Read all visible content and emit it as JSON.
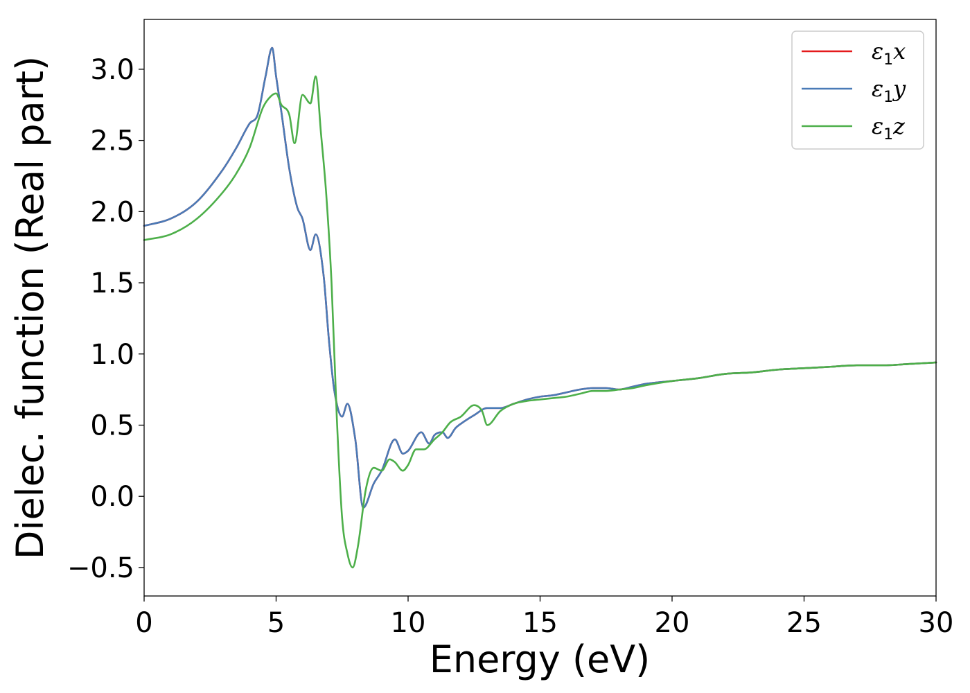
{
  "chart_data": {
    "type": "line",
    "title": "",
    "xlabel": "Energy (eV)",
    "ylabel": "Dielec. function (Real part)",
    "xlim": [
      0,
      30
    ],
    "ylim": [
      -0.7,
      3.35
    ],
    "xticks": [
      0,
      5,
      10,
      15,
      20,
      25,
      30
    ],
    "xtick_labels": [
      "0",
      "5",
      "10",
      "15",
      "20",
      "25",
      "30"
    ],
    "yticks": [
      -0.5,
      0.0,
      0.5,
      1.0,
      1.5,
      2.0,
      2.5,
      3.0
    ],
    "ytick_labels": [
      "−0.5",
      "0.0",
      "0.5",
      "1.0",
      "1.5",
      "2.0",
      "2.5",
      "3.0"
    ],
    "grid": false,
    "legend_position": "top-right",
    "series": [
      {
        "name": "ε₁x",
        "label_base": "ε",
        "label_sub": "1",
        "label_tail": "x",
        "color": "#e41a1c",
        "x": [
          0,
          1,
          2,
          3,
          3.5,
          4,
          4.3,
          4.6,
          4.85,
          5.0,
          5.2,
          5.5,
          5.8,
          6.0,
          6.3,
          6.5,
          6.8,
          7.0,
          7.2,
          7.5,
          7.7,
          8.0,
          8.3,
          8.7,
          9.0,
          9.5,
          9.8,
          10.0,
          10.5,
          10.8,
          11.0,
          11.3,
          11.5,
          11.8,
          12.0,
          12.5,
          13.0,
          13.5,
          14.0,
          14.5,
          15.0,
          15.5,
          16.0,
          16.5,
          17.0,
          17.5,
          18.0,
          18.5,
          19.0,
          20.0,
          21.0,
          22.0,
          23.0,
          24.0,
          25.0,
          26.0,
          27.0,
          28.0,
          29.0,
          30.0
        ],
        "y": [
          1.9,
          1.95,
          2.07,
          2.3,
          2.45,
          2.62,
          2.68,
          2.95,
          3.15,
          2.95,
          2.7,
          2.3,
          2.03,
          1.95,
          1.73,
          1.84,
          1.55,
          1.1,
          0.75,
          0.56,
          0.65,
          0.4,
          -0.08,
          0.09,
          0.18,
          0.4,
          0.3,
          0.32,
          0.45,
          0.37,
          0.43,
          0.45,
          0.41,
          0.48,
          0.51,
          0.57,
          0.62,
          0.62,
          0.65,
          0.68,
          0.7,
          0.71,
          0.73,
          0.75,
          0.76,
          0.76,
          0.75,
          0.77,
          0.79,
          0.81,
          0.83,
          0.86,
          0.87,
          0.89,
          0.9,
          0.91,
          0.92,
          0.92,
          0.93,
          0.94
        ]
      },
      {
        "name": "ε₁y",
        "label_base": "ε",
        "label_sub": "1",
        "label_tail": "y",
        "color": "#4a7bb7",
        "x": [
          0,
          1,
          2,
          3,
          3.5,
          4,
          4.3,
          4.6,
          4.85,
          5.0,
          5.2,
          5.5,
          5.8,
          6.0,
          6.3,
          6.5,
          6.8,
          7.0,
          7.2,
          7.5,
          7.7,
          8.0,
          8.3,
          8.7,
          9.0,
          9.5,
          9.8,
          10.0,
          10.5,
          10.8,
          11.0,
          11.3,
          11.5,
          11.8,
          12.0,
          12.5,
          13.0,
          13.5,
          14.0,
          14.5,
          15.0,
          15.5,
          16.0,
          16.5,
          17.0,
          17.5,
          18.0,
          18.5,
          19.0,
          20.0,
          21.0,
          22.0,
          23.0,
          24.0,
          25.0,
          26.0,
          27.0,
          28.0,
          29.0,
          30.0
        ],
        "y": [
          1.9,
          1.95,
          2.07,
          2.3,
          2.45,
          2.62,
          2.68,
          2.95,
          3.15,
          2.95,
          2.7,
          2.3,
          2.03,
          1.95,
          1.73,
          1.84,
          1.55,
          1.1,
          0.75,
          0.56,
          0.65,
          0.4,
          -0.08,
          0.09,
          0.18,
          0.4,
          0.3,
          0.32,
          0.45,
          0.37,
          0.43,
          0.45,
          0.41,
          0.48,
          0.51,
          0.57,
          0.62,
          0.62,
          0.65,
          0.68,
          0.7,
          0.71,
          0.73,
          0.75,
          0.76,
          0.76,
          0.75,
          0.77,
          0.79,
          0.81,
          0.83,
          0.86,
          0.87,
          0.89,
          0.9,
          0.91,
          0.92,
          0.92,
          0.93,
          0.94
        ]
      },
      {
        "name": "ε₁z",
        "label_base": "ε",
        "label_sub": "1",
        "label_tail": "z",
        "color": "#4daf4a",
        "x": [
          0,
          1,
          2,
          3,
          3.5,
          4,
          4.5,
          4.8,
          5.0,
          5.2,
          5.5,
          5.7,
          6.0,
          6.3,
          6.5,
          6.7,
          6.9,
          7.1,
          7.3,
          7.5,
          7.7,
          7.9,
          8.1,
          8.4,
          8.7,
          9.0,
          9.3,
          9.5,
          9.8,
          10.0,
          10.3,
          10.6,
          11.0,
          11.3,
          11.6,
          12.0,
          12.5,
          12.8,
          13.0,
          13.5,
          14.0,
          14.5,
          15.0,
          15.5,
          16.0,
          16.5,
          17.0,
          17.5,
          18.0,
          18.5,
          19.0,
          20.0,
          21.0,
          22.0,
          23.0,
          24.0,
          25.0,
          26.0,
          27.0,
          28.0,
          29.0,
          30.0
        ],
        "y": [
          1.8,
          1.84,
          1.95,
          2.14,
          2.27,
          2.45,
          2.73,
          2.81,
          2.83,
          2.75,
          2.68,
          2.48,
          2.82,
          2.76,
          2.95,
          2.55,
          2.12,
          1.5,
          0.55,
          -0.15,
          -0.4,
          -0.5,
          -0.35,
          0.05,
          0.2,
          0.18,
          0.26,
          0.24,
          0.18,
          0.22,
          0.33,
          0.33,
          0.4,
          0.45,
          0.52,
          0.56,
          0.64,
          0.6,
          0.5,
          0.6,
          0.65,
          0.67,
          0.68,
          0.69,
          0.7,
          0.72,
          0.74,
          0.74,
          0.75,
          0.76,
          0.78,
          0.81,
          0.83,
          0.86,
          0.87,
          0.89,
          0.9,
          0.91,
          0.92,
          0.92,
          0.93,
          0.94
        ]
      }
    ]
  }
}
